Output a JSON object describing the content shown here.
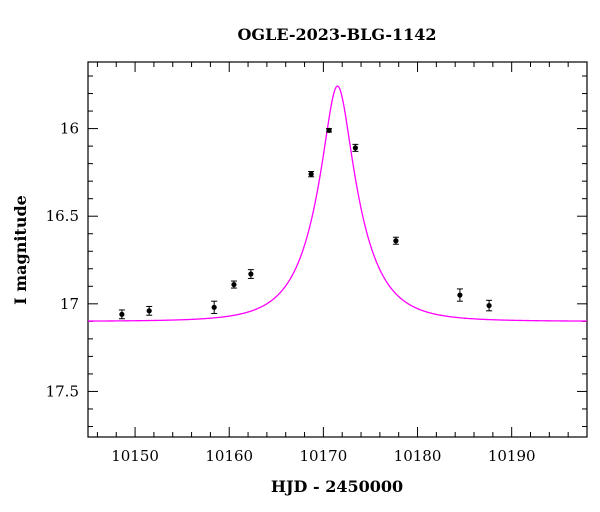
{
  "chart_data": {
    "type": "scatter",
    "title": "OGLE-2023-BLG-1142",
    "xlabel": "HJD - 2450000",
    "ylabel": "I magnitude",
    "xlim": [
      10145,
      10198
    ],
    "ylim": [
      17.76,
      15.62
    ],
    "y_inverted": true,
    "grid": false,
    "x_ticks": [
      10150,
      10160,
      10170,
      10180,
      10190
    ],
    "y_ticks": [
      16,
      16.5,
      17,
      17.5
    ],
    "x_minor_step": 2,
    "y_minor_step": 0.1,
    "colors": {
      "model": "#ff00ff",
      "points": "#000000"
    },
    "series": [
      {
        "type": "scatter_errorbars",
        "x": [
          10148.6,
          10151.5,
          10158.4,
          10160.5,
          10162.3,
          10168.7,
          10170.6,
          10173.4,
          10177.7,
          10184.5,
          10187.6
        ],
        "y": [
          17.06,
          17.04,
          17.02,
          16.89,
          16.83,
          16.26,
          16.01,
          16.11,
          16.64,
          16.95,
          17.01
        ],
        "yerr": [
          0.025,
          0.025,
          0.035,
          0.02,
          0.025,
          0.015,
          0.01,
          0.02,
          0.02,
          0.035,
          0.03
        ]
      },
      {
        "type": "model_curve",
        "model": "paczynski",
        "t0": 10171.5,
        "tE": 4.5,
        "u0": 0.3,
        "baseline_mag": 17.1,
        "x_range": [
          10145,
          10198
        ]
      }
    ]
  }
}
